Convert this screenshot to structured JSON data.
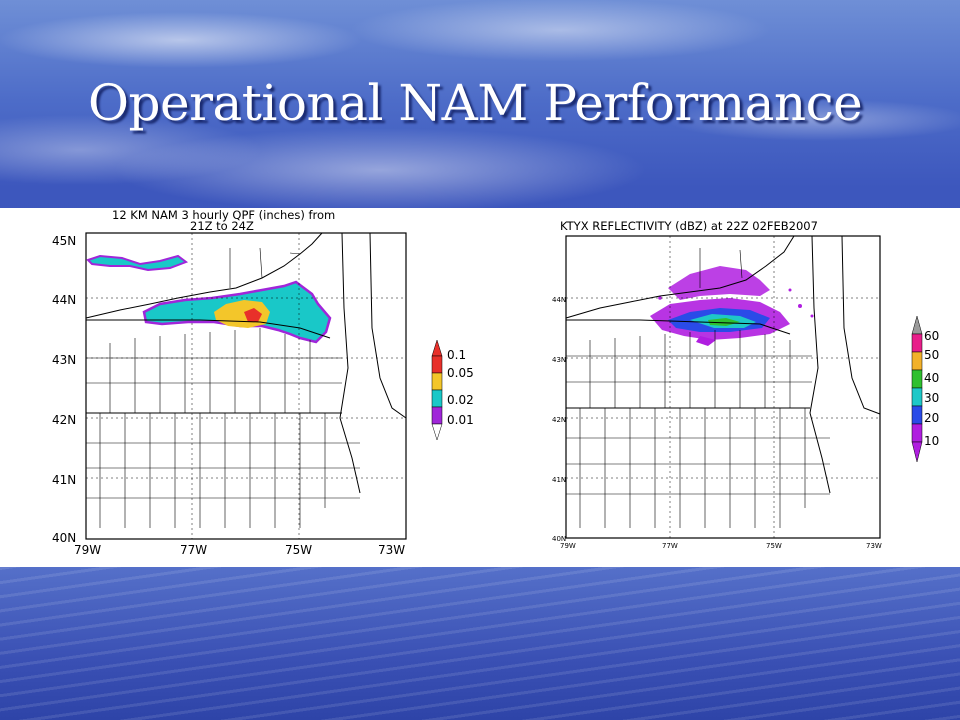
{
  "slide": {
    "title": "Operational NAM Performance",
    "colors": {
      "title": "#ffffff",
      "background": "#3a52b8"
    }
  },
  "left_map": {
    "title_line1": "12 KM NAM 3 hourly QPF (inches) from",
    "title_line2": "21Z to 24Z",
    "lat_labels": [
      "45N",
      "44N",
      "43N",
      "42N",
      "41N",
      "40N"
    ],
    "lon_labels": [
      "79W",
      "77W",
      "75W",
      "73W"
    ],
    "legend": {
      "labels": [
        "0.1",
        "0.05",
        "0.02",
        "0.01"
      ],
      "colors": [
        "#e8302a",
        "#f3c62a",
        "#19c8c8",
        "#a026d9"
      ]
    }
  },
  "right_map": {
    "title": "KTYX REFLECTIVITY (dBZ) at 22Z 02FEB2007",
    "lat_labels": [
      "44N",
      "43N",
      "42N",
      "41N",
      "40N"
    ],
    "lon_labels": [
      "79W",
      "77W",
      "75W",
      "73W"
    ],
    "legend": {
      "labels": [
        "60",
        "50",
        "40",
        "30",
        "20",
        "10"
      ],
      "colors": [
        "#e81e8a",
        "#f2b12a",
        "#2fc02f",
        "#1ec8c8",
        "#2a4be8",
        "#b01ee0"
      ]
    }
  }
}
